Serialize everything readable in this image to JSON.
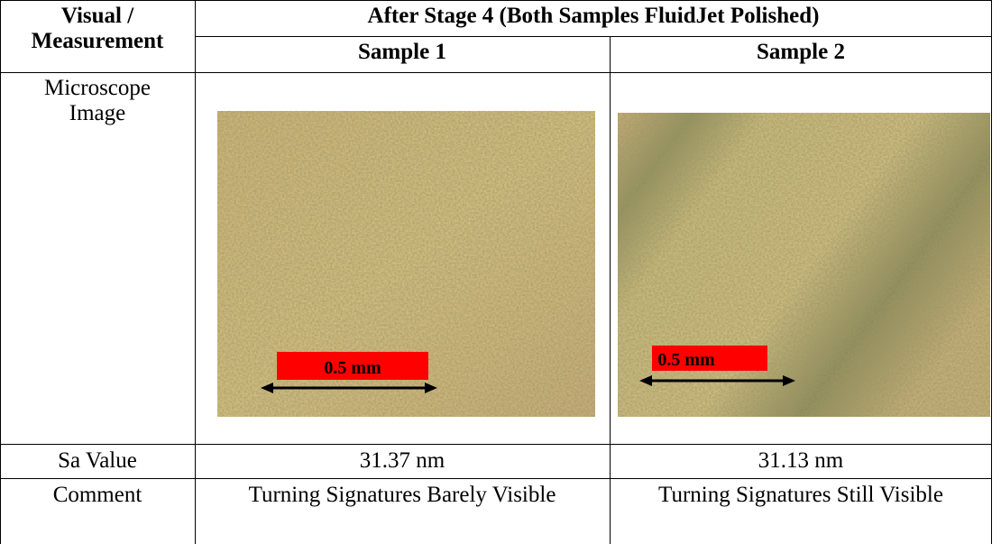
{
  "table": {
    "header": {
      "corner": [
        "Visual /",
        "Measurement"
      ],
      "group": "After Stage 4 (Both Samples FluidJet Polished)",
      "columns": [
        "Sample 1",
        "Sample 2"
      ]
    },
    "rows": [
      {
        "label": [
          "Microscope",
          "Image"
        ],
        "cells": [
          {
            "scale_bar": "0.5 mm"
          },
          {
            "scale_bar": "0.5 mm"
          }
        ]
      },
      {
        "label": "Sa Value",
        "cells": [
          "31.37 nm",
          "31.13 nm"
        ]
      },
      {
        "label": "Comment",
        "cells": [
          "Turning Signatures Barely Visible",
          "Turning Signatures Still Visible"
        ]
      }
    ]
  }
}
